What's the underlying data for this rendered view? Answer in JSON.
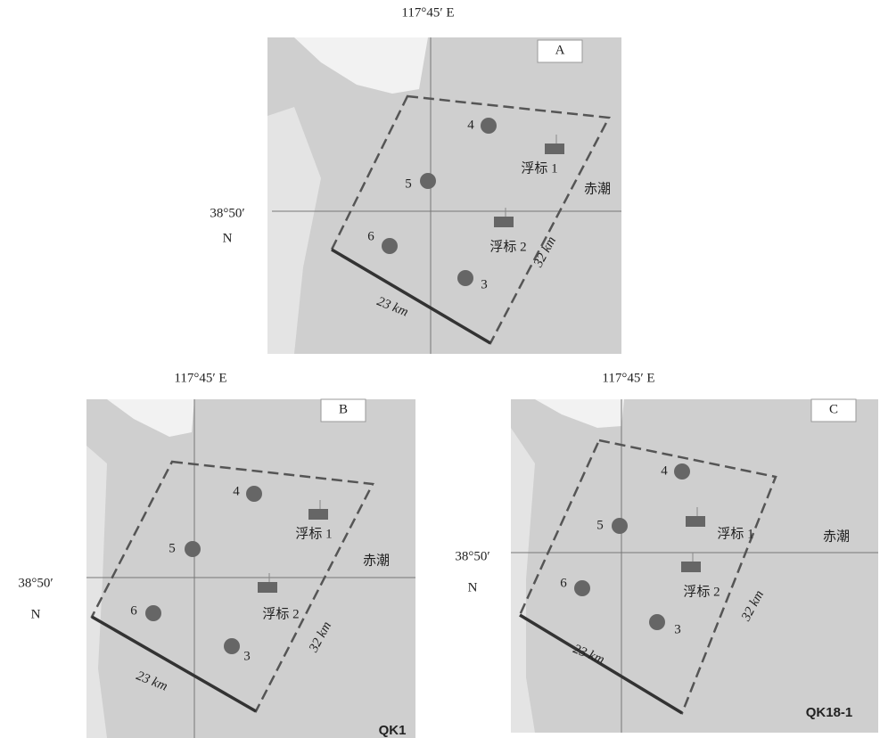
{
  "panels": [
    {
      "label": "A",
      "lon_label": "117°45′ E",
      "lat_label": "38°50′",
      "lat_dir": "N",
      "stations": [
        "4",
        "5",
        "6",
        "3"
      ],
      "buoys": [
        "浮标 1",
        "浮标 2"
      ],
      "red_tide": "赤潮",
      "side_long": "32 km",
      "side_short": "23 km"
    },
    {
      "label": "B",
      "lon_label": "117°45′ E",
      "lat_label": "38°50′",
      "lat_dir": "N",
      "stations": [
        "4",
        "5",
        "6",
        "3"
      ],
      "buoys": [
        "浮标 1",
        "浮标 2"
      ],
      "red_tide": "赤潮",
      "side_long": "32 km",
      "side_short": "23 km",
      "watermark": "QK1"
    },
    {
      "label": "C",
      "lon_label": "117°45′ E",
      "lat_label": "38°50′",
      "lat_dir": "N",
      "stations": [
        "4",
        "5",
        "6",
        "3"
      ],
      "buoys": [
        "浮标 1",
        "浮标 2"
      ],
      "red_tide": "赤潮",
      "side_long": "32 km",
      "side_short": "23 km",
      "watermark": "QK18-1"
    }
  ]
}
